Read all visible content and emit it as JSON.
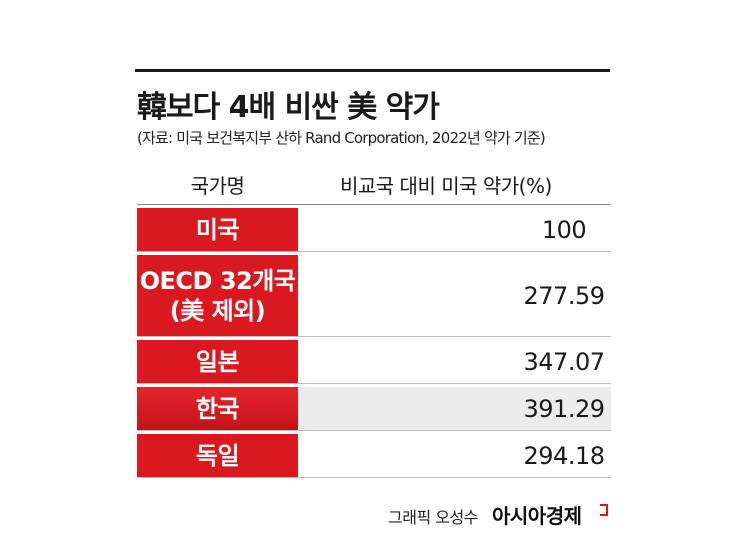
{
  "title": "韓보다 4배 비싼 美 약가",
  "subtitle": "(자료: 미국 보건복지부 산하 Rand Corporation, 2022년 약가 기준)",
  "table": {
    "headers": {
      "country": "국가명",
      "value": "비교국 대비 미국 약가(%)"
    },
    "rows": [
      {
        "country_line1": "미국",
        "country_line2": "",
        "value": "100"
      },
      {
        "country_line1": "OECD 32개국",
        "country_line2": "(美 제외)",
        "value": "277.59"
      },
      {
        "country_line1": "일본",
        "country_line2": "",
        "value": "347.07"
      },
      {
        "country_line1": "한국",
        "country_line2": "",
        "value": "391.29"
      },
      {
        "country_line1": "독일",
        "country_line2": "",
        "value": "294.18"
      }
    ]
  },
  "footer": {
    "credit": "그래픽 오성수",
    "brand": "아시아경제"
  },
  "colors": {
    "accent_red": "#d9181f",
    "highlight_bg": "#ececec"
  }
}
